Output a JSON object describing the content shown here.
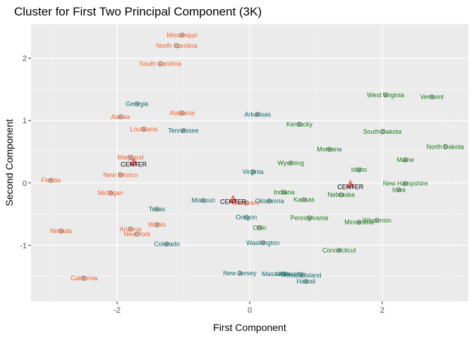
{
  "chart_data": {
    "type": "scatter",
    "title": "Cluster for First Two Principal Component (3K)",
    "xlabel": "First Component",
    "ylabel": "Second Component",
    "xlim": [
      -3.3,
      3.3
    ],
    "ylim": [
      -1.9,
      2.55
    ],
    "xticks": [
      -2,
      0,
      2
    ],
    "yticks": [
      -1,
      0,
      1,
      2
    ],
    "minor_x": [
      -3,
      -1,
      1,
      3
    ],
    "minor_y": [
      -1.5,
      -0.5,
      0.5,
      1.5,
      2.5
    ],
    "grid": true,
    "legend": "none",
    "colors": {
      "panel": "#ebebeb",
      "grid_major": "#ffffff",
      "c1": "#f8602c",
      "c2": "#0f6a6a",
      "c3": "#1a7a1a",
      "point": "#b3b3b3",
      "point_edge": "#6e6e6e",
      "center_fill": "#ff6b6b",
      "center_edge": "#cc3030"
    },
    "series": [
      {
        "cluster": "c1",
        "points": [
          {
            "label": "Mississippi",
            "x": -1.02,
            "y": 2.37
          },
          {
            "label": "North Carolina",
            "x": -1.1,
            "y": 2.2
          },
          {
            "label": "South Carolina",
            "x": -1.35,
            "y": 1.91
          },
          {
            "label": "Alabama",
            "x": -1.02,
            "y": 1.12
          },
          {
            "label": "Alaska",
            "x": -1.95,
            "y": 1.06
          },
          {
            "label": "Louisiana",
            "x": -1.6,
            "y": 0.86
          },
          {
            "label": "Maryland",
            "x": -1.8,
            "y": 0.41
          },
          {
            "label": "New Mexico",
            "x": -1.95,
            "y": 0.13
          },
          {
            "label": "Florida",
            "x": -3.0,
            "y": 0.04
          },
          {
            "label": "Michigan",
            "x": -2.1,
            "y": -0.16
          },
          {
            "label": "Delaware",
            "x": -0.05,
            "y": -0.32
          },
          {
            "label": "Illinois",
            "x": -1.4,
            "y": -0.67
          },
          {
            "label": "Arizona",
            "x": -1.8,
            "y": -0.74
          },
          {
            "label": "New York",
            "x": -1.7,
            "y": -0.82
          },
          {
            "label": "Nevada",
            "x": -2.85,
            "y": -0.77
          },
          {
            "label": "California",
            "x": -2.5,
            "y": -1.53
          }
        ]
      },
      {
        "cluster": "c2",
        "points": [
          {
            "label": "Georgia",
            "x": -1.7,
            "y": 1.27
          },
          {
            "label": "Arkansas",
            "x": 0.12,
            "y": 1.1
          },
          {
            "label": "Tennessee",
            "x": -1.0,
            "y": 0.84
          },
          {
            "label": "Virginia",
            "x": 0.05,
            "y": 0.18
          },
          {
            "label": "Missouri",
            "x": -0.7,
            "y": -0.28
          },
          {
            "label": "Oklahoma",
            "x": 0.3,
            "y": -0.29
          },
          {
            "label": "Texas",
            "x": -1.4,
            "y": -0.42
          },
          {
            "label": "Oregon",
            "x": -0.05,
            "y": -0.55
          },
          {
            "label": "Colorado",
            "x": -1.25,
            "y": -0.98
          },
          {
            "label": "Washington",
            "x": 0.2,
            "y": -0.96
          },
          {
            "label": "New Jersey",
            "x": -0.15,
            "y": -1.45
          },
          {
            "label": "Massachusetts",
            "x": 0.5,
            "y": -1.46
          },
          {
            "label": "Rhode Island",
            "x": 0.8,
            "y": -1.48
          },
          {
            "label": "Utah",
            "x": 0.5,
            "y": -1.46
          },
          {
            "label": "Hawaii",
            "x": 0.85,
            "y": -1.58
          }
        ]
      },
      {
        "cluster": "c3",
        "points": [
          {
            "label": "West Virginia",
            "x": 2.05,
            "y": 1.41
          },
          {
            "label": "Vermont",
            "x": 2.75,
            "y": 1.38
          },
          {
            "label": "Kentucky",
            "x": 0.75,
            "y": 0.94
          },
          {
            "label": "South Dakota",
            "x": 2.0,
            "y": 0.82
          },
          {
            "label": "North Dakota",
            "x": 2.95,
            "y": 0.58
          },
          {
            "label": "Montana",
            "x": 1.2,
            "y": 0.54
          },
          {
            "label": "Maine",
            "x": 2.35,
            "y": 0.37
          },
          {
            "label": "Wyoming",
            "x": 0.62,
            "y": 0.32
          },
          {
            "label": "Idaho",
            "x": 1.65,
            "y": 0.21
          },
          {
            "label": "New Hampshire",
            "x": 2.35,
            "y": -0.01
          },
          {
            "label": "Iowa",
            "x": 2.25,
            "y": -0.11
          },
          {
            "label": "Indiana",
            "x": 0.52,
            "y": -0.15
          },
          {
            "label": "Nebraska",
            "x": 1.38,
            "y": -0.19
          },
          {
            "label": "Kansas",
            "x": 0.82,
            "y": -0.27
          },
          {
            "label": "Pennsylvania",
            "x": 0.9,
            "y": -0.56
          },
          {
            "label": "Minnesota",
            "x": 1.65,
            "y": -0.63
          },
          {
            "label": "Wisconsin",
            "x": 1.92,
            "y": -0.6
          },
          {
            "label": "Ohio",
            "x": 0.15,
            "y": -0.72
          },
          {
            "label": "Connecticut",
            "x": 1.35,
            "y": -1.08
          }
        ]
      }
    ],
    "centers": [
      {
        "label": "CENTER",
        "x": -1.75,
        "y": 0.33
      },
      {
        "label": "CENTER",
        "x": -0.25,
        "y": -0.27
      },
      {
        "label": "CENTER",
        "x": 1.52,
        "y": -0.03
      }
    ]
  }
}
